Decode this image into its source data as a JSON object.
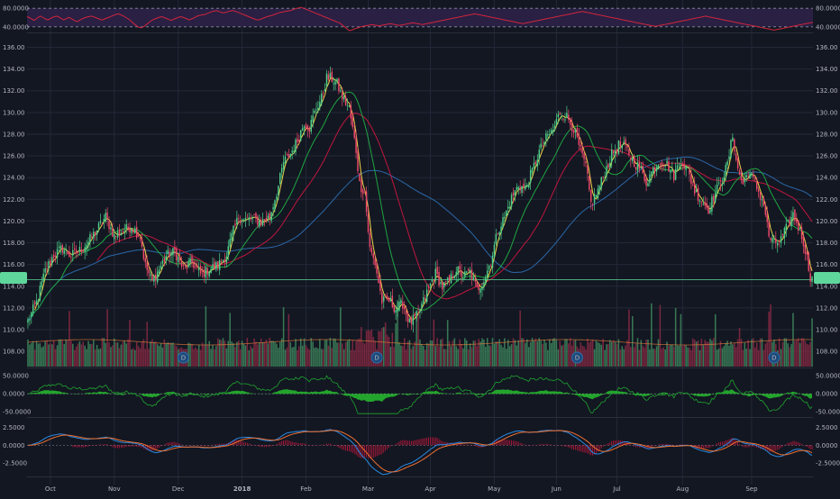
{
  "chart_data": {
    "type": "candlestick",
    "x_axis": {
      "month_labels": [
        "Oct",
        "Nov",
        "Dec",
        "2018",
        "Feb",
        "Mar",
        "Apr",
        "May",
        "Jun",
        "Jul",
        "Aug",
        "Sep"
      ],
      "month_label_day_index": [
        13,
        50,
        87,
        124,
        161,
        197,
        233,
        270,
        306,
        341,
        379,
        419
      ]
    },
    "panes": {
      "rsi": {
        "left_ticks": [
          "80.0000",
          "40.0000"
        ],
        "right_ticks": [
          "80.0000",
          "40.0000"
        ],
        "tick_values": [
          80,
          40
        ],
        "ylim": [
          30,
          90
        ],
        "values": [
          62,
          60,
          57,
          54,
          57,
          61,
          63,
          60,
          57,
          55,
          57,
          60,
          62,
          63,
          61,
          58,
          55,
          57,
          60,
          59,
          56,
          53,
          51,
          54,
          57,
          59,
          61,
          62,
          63,
          62,
          60,
          58,
          56,
          55,
          57,
          59,
          61,
          63,
          65,
          67,
          68,
          66,
          64,
          61,
          58,
          55,
          50,
          46,
          42,
          39,
          38,
          40,
          44,
          48,
          52,
          55,
          57,
          59,
          61,
          62,
          60,
          58,
          56,
          54,
          56,
          58,
          60,
          62,
          61,
          59,
          57,
          55,
          57,
          59,
          62,
          64,
          65,
          66,
          67,
          69,
          71,
          73,
          74,
          75,
          73,
          71,
          70,
          71,
          73,
          74,
          75,
          74,
          72,
          70,
          68,
          66,
          64,
          62,
          60,
          58,
          56,
          55,
          56,
          58,
          60,
          62,
          63,
          64,
          66,
          68,
          70,
          71,
          72,
          73,
          74,
          75,
          76,
          78,
          80,
          81,
          82,
          80,
          78,
          76,
          74,
          72,
          70,
          68,
          66,
          64,
          62,
          60,
          58,
          56,
          54,
          52,
          50,
          48,
          44,
          40,
          36,
          32,
          33,
          35,
          37,
          38,
          40,
          41,
          42,
          43,
          44,
          45,
          44,
          43,
          42,
          43,
          44,
          45,
          46,
          47,
          46,
          45,
          44,
          43,
          44,
          45,
          46,
          47,
          48,
          49,
          48,
          47,
          46,
          45,
          46,
          47,
          48,
          49,
          50,
          51,
          52,
          53,
          54,
          55,
          56,
          57,
          58,
          59,
          60,
          61,
          62,
          63,
          64,
          65,
          66,
          67,
          68,
          67,
          66,
          65,
          64,
          63,
          62,
          61,
          60,
          59,
          58,
          57,
          56,
          55,
          54,
          53,
          52,
          51,
          50,
          49,
          48,
          47,
          48,
          49,
          50,
          51,
          52,
          53,
          54,
          55,
          56,
          57,
          58,
          59,
          60,
          61,
          62,
          63,
          64,
          65,
          66,
          67,
          68,
          69,
          70,
          71,
          72,
          73,
          72,
          71,
          70,
          69,
          68,
          67,
          66,
          65,
          64,
          63,
          62,
          61,
          60,
          59,
          58,
          57,
          56,
          55,
          54,
          53,
          52,
          51,
          50,
          49,
          48,
          47,
          46,
          45,
          44,
          43,
          42,
          41,
          42,
          43,
          44,
          45,
          46,
          47,
          48,
          49,
          50,
          51,
          52,
          53,
          54,
          55,
          56,
          57,
          58,
          59,
          60,
          61,
          62,
          63,
          62,
          61,
          60,
          59,
          58,
          57,
          56,
          55,
          54,
          53,
          52,
          51,
          50,
          49,
          48,
          47,
          46,
          45,
          44,
          43,
          42,
          41,
          40,
          39,
          38,
          37,
          36,
          35,
          34,
          33,
          34,
          35,
          36,
          37,
          38,
          39,
          40,
          41,
          42,
          43,
          44,
          45,
          46,
          47,
          48,
          49,
          50
        ]
      },
      "price": {
        "right_ticks": [
          "136.00",
          "134.00",
          "132.00",
          "130.00",
          "128.00",
          "126.00",
          "124.00",
          "122.00",
          "120.00",
          "118.00",
          "116.00",
          "114.00",
          "112.00",
          "110.00",
          "108.00"
        ],
        "left_ticks": [
          "136.00",
          "134.00",
          "132.00",
          "130.00",
          "128.00",
          "126.00",
          "124.00",
          "122.00",
          "120.00",
          "118.00",
          "116.00",
          "114.00",
          "112.00",
          "110.00",
          "108.00"
        ],
        "tick_values": [
          136,
          134,
          132,
          130,
          128,
          126,
          124,
          122,
          120,
          118,
          116,
          114,
          112,
          110,
          108
        ],
        "ylim": [
          106.6,
          137.2
        ],
        "current_price_level": 114.6,
        "anchors": [
          [
            0,
            110.8
          ],
          [
            5,
            112.5
          ],
          [
            10,
            115.4
          ],
          [
            15,
            116.9
          ],
          [
            20,
            117.5
          ],
          [
            25,
            116.8
          ],
          [
            30,
            117.3
          ],
          [
            35,
            118.1
          ],
          [
            40,
            119.2
          ],
          [
            45,
            120.4
          ],
          [
            50,
            118.6
          ],
          [
            55,
            119.1
          ],
          [
            60,
            119.5
          ],
          [
            65,
            118.6
          ],
          [
            68,
            115.9
          ],
          [
            72,
            114.4
          ],
          [
            76,
            115.6
          ],
          [
            80,
            116.8
          ],
          [
            85,
            117.2
          ],
          [
            90,
            115.6
          ],
          [
            95,
            116.2
          ],
          [
            100,
            115.1
          ],
          [
            105,
            115.6
          ],
          [
            110,
            115.9
          ],
          [
            115,
            116.9
          ],
          [
            118,
            118.6
          ],
          [
            122,
            120.4
          ],
          [
            125,
            120.1
          ],
          [
            130,
            120.2
          ],
          [
            135,
            119.9
          ],
          [
            140,
            120.4
          ],
          [
            145,
            123.2
          ],
          [
            148,
            125.4
          ],
          [
            152,
            126.2
          ],
          [
            156,
            127.4
          ],
          [
            160,
            129.1
          ],
          [
            163,
            128.6
          ],
          [
            167,
            130.4
          ],
          [
            170,
            131.3
          ],
          [
            173,
            133.2
          ],
          [
            176,
            133.1
          ],
          [
            179,
            132.6
          ],
          [
            182,
            131.4
          ],
          [
            186,
            130.4
          ],
          [
            190,
            126.5
          ],
          [
            192,
            123.4
          ],
          [
            195,
            122.6
          ],
          [
            198,
            117.4
          ],
          [
            201,
            116.1
          ],
          [
            205,
            112.6
          ],
          [
            209,
            112.7
          ],
          [
            213,
            111.9
          ],
          [
            217,
            112.4
          ],
          [
            221,
            110.6
          ],
          [
            225,
            111.2
          ],
          [
            229,
            112.6
          ],
          [
            232,
            113.8
          ],
          [
            236,
            115.2
          ],
          [
            240,
            113.9
          ],
          [
            244,
            114.5
          ],
          [
            248,
            115.6
          ],
          [
            252,
            114.9
          ],
          [
            256,
            115.3
          ],
          [
            260,
            113.7
          ],
          [
            264,
            114.6
          ],
          [
            268,
            116.3
          ],
          [
            272,
            119.1
          ],
          [
            276,
            120.4
          ],
          [
            280,
            122.1
          ],
          [
            284,
            123.3
          ],
          [
            288,
            123.0
          ],
          [
            292,
            124.6
          ],
          [
            296,
            126.4
          ],
          [
            300,
            127.6
          ],
          [
            304,
            128.4
          ],
          [
            308,
            130.0
          ],
          [
            312,
            129.6
          ],
          [
            316,
            128.5
          ],
          [
            320,
            126.4
          ],
          [
            323,
            125.0
          ],
          [
            326,
            121.6
          ],
          [
            330,
            122.8
          ],
          [
            334,
            124.5
          ],
          [
            338,
            126.1
          ],
          [
            342,
            127.0
          ],
          [
            346,
            126.8
          ],
          [
            350,
            125.6
          ],
          [
            354,
            124.9
          ],
          [
            358,
            123.6
          ],
          [
            362,
            124.8
          ],
          [
            366,
            125.6
          ],
          [
            370,
            125.2
          ],
          [
            374,
            124.2
          ],
          [
            378,
            125.7
          ],
          [
            382,
            124.6
          ],
          [
            386,
            122.8
          ],
          [
            390,
            121.9
          ],
          [
            394,
            121.1
          ],
          [
            398,
            122.6
          ],
          [
            402,
            123.9
          ],
          [
            405,
            125.2
          ],
          [
            408,
            127.9
          ],
          [
            411,
            124.7
          ],
          [
            414,
            123.4
          ],
          [
            417,
            124.6
          ],
          [
            420,
            123.8
          ],
          [
            423,
            122.7
          ],
          [
            426,
            121.6
          ],
          [
            429,
            118.6
          ],
          [
            432,
            117.9
          ],
          [
            436,
            118.3
          ],
          [
            440,
            119.6
          ],
          [
            443,
            120.6
          ],
          [
            446,
            119.5
          ],
          [
            449,
            118.1
          ],
          [
            451,
            116.6
          ],
          [
            453,
            114.9
          ],
          [
            454,
            114.6
          ]
        ]
      },
      "oscillator": {
        "right_ticks": [
          "50.0000",
          "0.0000",
          "-50.0000"
        ],
        "left_ticks": [
          "50.0000",
          "0.0000",
          "-50.0000"
        ],
        "tick_values": [
          50,
          0,
          -50
        ],
        "ylim": [
          -62,
          68
        ]
      },
      "macd": {
        "right_ticks": [
          "2.5000",
          "0.0000",
          "-2.5000"
        ],
        "left_ticks": [
          "2.5000",
          "0.0000",
          "-2.5000"
        ],
        "tick_values": [
          2.5,
          0,
          -2.5
        ],
        "ylim": [
          -4.3,
          3.6
        ]
      }
    },
    "dividend_markers": [
      {
        "day": 90,
        "label": "D"
      },
      {
        "day": 202,
        "label": "D"
      },
      {
        "day": 318,
        "label": "D"
      },
      {
        "day": 432,
        "label": "D"
      }
    ],
    "colors": {
      "background": "#131722",
      "grid": "#232838",
      "up_candle": "#4fcf8a",
      "down_candle": "#ef4a6b",
      "ma_fast": "#f0d44a",
      "ma_mid": "#1fa542",
      "ma_slow": "#c0173d",
      "ma_long": "#2b68a8",
      "volume_up": "#3f8a5e",
      "volume_down": "#8b2a44",
      "rsi_line": "#d2243b",
      "rsi_band": "#2c2148",
      "osc_line": "#1ea42f",
      "osc_fill": "#26b42d",
      "macd_line": "#2a8ae2",
      "signal_line": "#f07030",
      "macd_hist": "#c0183c",
      "price_badge": "#5fd79c"
    }
  },
  "price_badge": {
    "right_label": "",
    "left_label": ""
  }
}
